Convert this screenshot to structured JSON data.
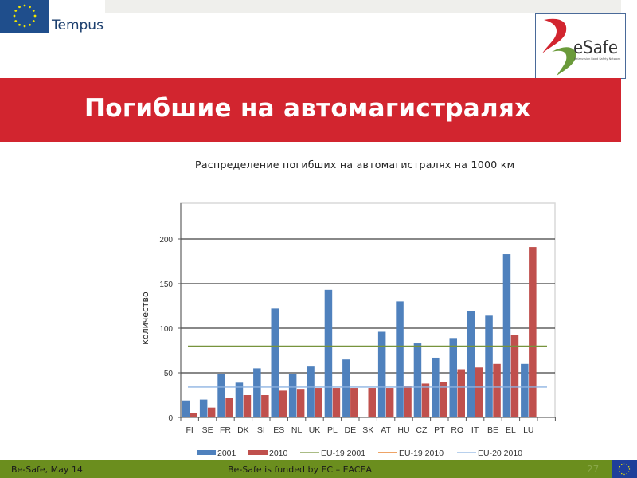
{
  "header": {
    "tempus_label": "Tempus",
    "esafe_logo_text": "eSafe",
    "esafe_logo_subtitle": "Belarussian Road Safety Network"
  },
  "slide": {
    "title": "Погибшие на автомагистралях",
    "chart_heading": "Распределение погибших на автомагистралях на 1000 км"
  },
  "footer": {
    "left": "Be-Safe, May 14",
    "center": "Be-Safe is funded by EC – EACEA",
    "page_number": "27"
  },
  "colors": {
    "title_band": "#d2252f",
    "footer_band": "#6b8e1e",
    "series_2001": "#4f81bd",
    "series_2010": "#c0504d",
    "eu19_2001": "#77933c",
    "eu19_2010": "#e46c0a",
    "eu20_2010": "#8db3e2"
  },
  "chart_data": {
    "type": "bar",
    "title": "Распределение погибших на автомагистралях на 1000 км",
    "xlabel": "",
    "ylabel": "количество",
    "ylim": [
      0,
      230
    ],
    "yticks": [
      0,
      50,
      100,
      150,
      200
    ],
    "grid": true,
    "legend_position": "bottom",
    "categories": [
      "FI",
      "SE",
      "FR",
      "DK",
      "SI",
      "ES",
      "NL",
      "UK",
      "PL",
      "DE",
      "SK",
      "AT",
      "HU",
      "CZ",
      "PT",
      "RO",
      "IT",
      "BE",
      "EL",
      "LU"
    ],
    "series": [
      {
        "name": "2001",
        "type": "bar",
        "values": [
          19,
          20,
          49,
          39,
          55,
          122,
          49,
          57,
          143,
          65,
          null,
          96,
          130,
          83,
          67,
          89,
          119,
          114,
          183,
          60
        ]
      },
      {
        "name": "2010",
        "type": "bar",
        "values": [
          5,
          11,
          22,
          25,
          25,
          30,
          32,
          33,
          33,
          33,
          33,
          33,
          35,
          38,
          40,
          54,
          56,
          60,
          92,
          191
        ]
      },
      {
        "name": "EU-19 2001",
        "type": "line",
        "value": 80
      },
      {
        "name": "EU-19 2010",
        "type": "line",
        "value": null
      },
      {
        "name": "EU-20 2010",
        "type": "line",
        "value": 34
      }
    ]
  }
}
